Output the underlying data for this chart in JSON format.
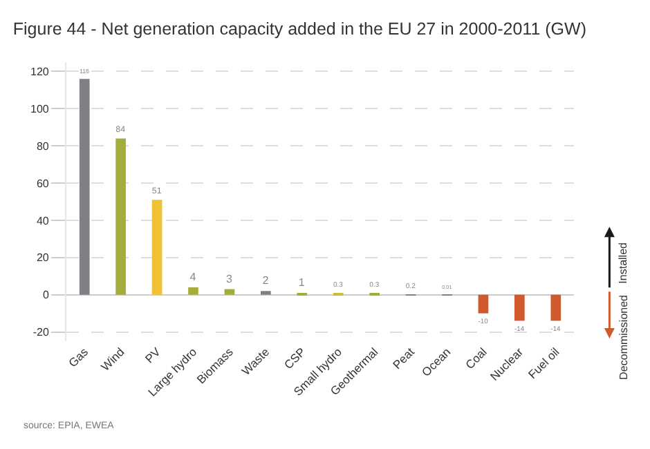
{
  "chart_data": {
    "type": "bar",
    "title": "Figure 44 - Net generation capacity added in the EU 27 in 2000-2011 (GW)",
    "categories": [
      "Gas",
      "Wind",
      "PV",
      "Large hydro",
      "Biomass",
      "Waste",
      "CSP",
      "Small hydro",
      "Geothermal",
      "Peat",
      "Ocean",
      "Coal",
      "Nuclear",
      "Fuel oil"
    ],
    "values": [
      116,
      84,
      51,
      4,
      3,
      2,
      1,
      0.3,
      0.3,
      0.2,
      0.01,
      -10,
      -14,
      -14
    ],
    "colors": [
      "#7f7f84",
      "#a4ad3c",
      "#efc236",
      "#a4ad3c",
      "#a4ad3c",
      "#7f7f84",
      "#a4ad3c",
      "#c9c03a",
      "#a4ad3c",
      "#7f7f84",
      "#7f7f84",
      "#d05a2c",
      "#d05a2c",
      "#d05a2c"
    ],
    "ylim": [
      -25,
      125
    ],
    "yticks": [
      -20,
      0,
      20,
      40,
      60,
      80,
      100,
      120
    ],
    "grid": "y",
    "data_labels": true,
    "annotations": [
      "Installed",
      "Decommissioned",
      "source: EPIA, EWEA"
    ]
  }
}
